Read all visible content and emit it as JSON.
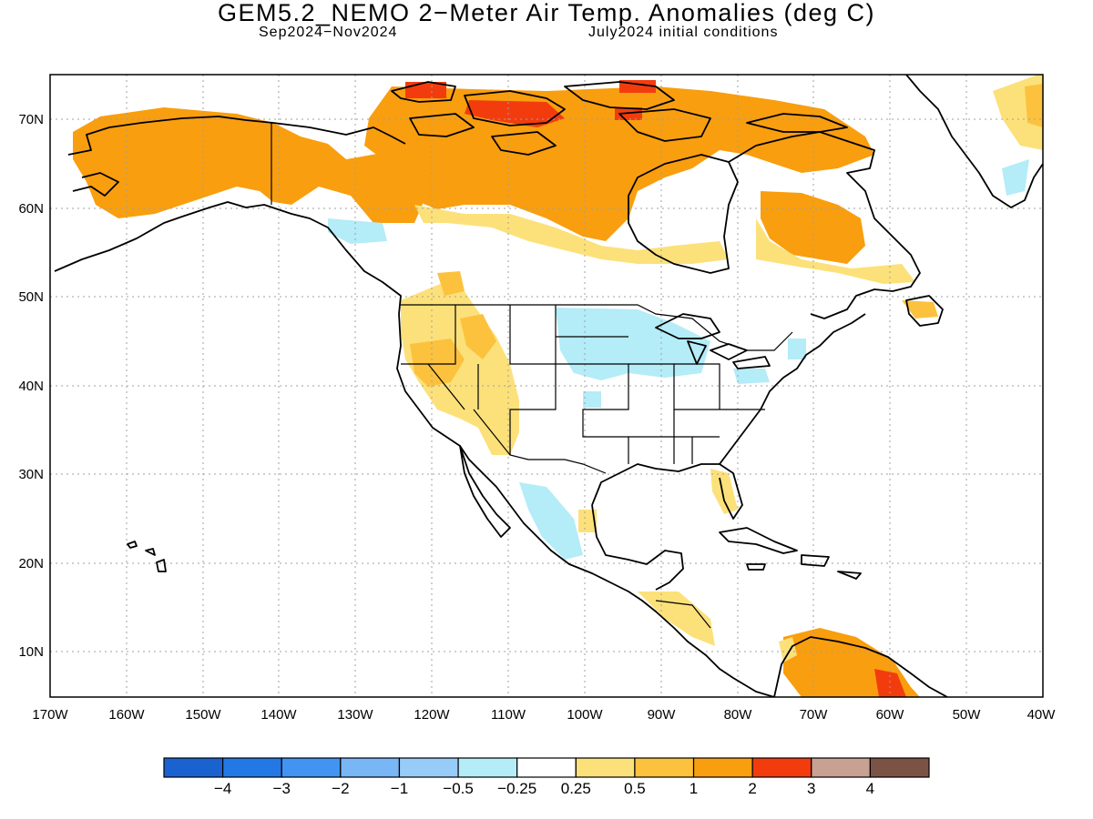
{
  "title": "GEM5.2_NEMO 2−Meter Air Temp. Anomalies (deg C)",
  "subtitle_left": "Sep2024−Nov2024",
  "subtitle_right": "July2024 initial conditions",
  "chart_data": {
    "type": "heatmap",
    "title": "GEM5.2_NEMO 2−Meter Air Temp. Anomalies (deg C)",
    "region": "North America",
    "xlim": [
      -170,
      -40
    ],
    "ylim": [
      5,
      75
    ],
    "grid": true,
    "x_ticks": [
      -170,
      -160,
      -150,
      -140,
      -130,
      -120,
      -110,
      -100,
      -90,
      -80,
      -70,
      -60,
      -50,
      -40
    ],
    "x_tick_labels": [
      "170W",
      "160W",
      "150W",
      "140W",
      "130W",
      "120W",
      "110W",
      "100W",
      "90W",
      "80W",
      "70W",
      "60W",
      "50W",
      "40W"
    ],
    "y_ticks": [
      10,
      20,
      30,
      40,
      50,
      60,
      70
    ],
    "y_tick_labels": [
      "10N",
      "20N",
      "30N",
      "40N",
      "50N",
      "60N",
      "70N"
    ],
    "colorbar": {
      "placement": "bottom",
      "colors": [
        "#1a62d0",
        "#2478e6",
        "#4394f2",
        "#78b6f5",
        "#98ccf8",
        "#b4ecf8",
        "#ffffff",
        "#fce17a",
        "#fcc23e",
        "#f99e0e",
        "#f33c0e",
        "#c8a094",
        "#7a5246"
      ],
      "labels": [
        "−4",
        "−3",
        "−2",
        "−1",
        "−0.5",
        "−0.25",
        "0.25",
        "0.5",
        "1",
        "2",
        "3",
        "4"
      ]
    },
    "anomaly_regions": [
      {
        "area": "Alaska and Yukon",
        "level": "1 to 2"
      },
      {
        "area": "Northern Canada and Arctic Archipelago",
        "level": "1 to 2"
      },
      {
        "area": "Canadian Arctic islands (spots)",
        "level": "2 to 3"
      },
      {
        "area": "Quebec and Labrador",
        "level": "0.5 to 2"
      },
      {
        "area": "Western United States",
        "level": "0.25 to 1"
      },
      {
        "area": "Northern Great Plains and Great Lakes",
        "level": "-0.5 to -0.25"
      },
      {
        "area": "Baja California Sur and Gulf of California",
        "level": "-0.5 to -0.25"
      },
      {
        "area": "Northern South America",
        "level": "1 to 3"
      },
      {
        "area": "Central America",
        "level": "0.25 to 1"
      },
      {
        "area": "Greenland and northeast Atlantic",
        "level": "0.25 to 1"
      }
    ]
  }
}
